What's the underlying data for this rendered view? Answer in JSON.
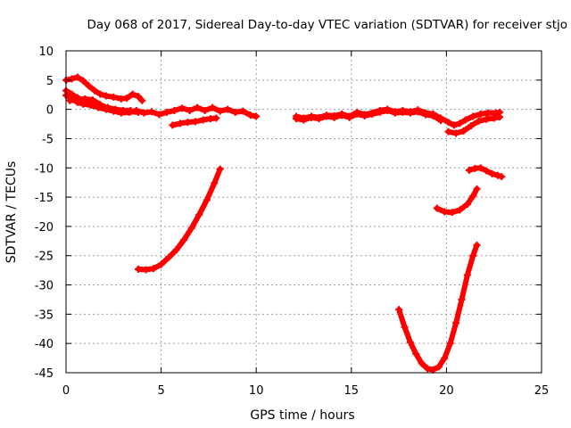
{
  "chart_data": {
    "type": "scatter",
    "title": "Day 068 of 2017, Sidereal Day-to-day VTEC variation (SDTVAR) for receiver stjo",
    "xlabel": "GPS time / hours",
    "ylabel": "SDTVAR / TECUs",
    "xlim": [
      0,
      25
    ],
    "ylim": [
      -45,
      10
    ],
    "xticks": [
      0,
      5,
      10,
      15,
      20,
      25
    ],
    "yticks": [
      10,
      5,
      0,
      -5,
      -10,
      -15,
      -20,
      -25,
      -30,
      -35,
      -40,
      -45
    ],
    "grid": true,
    "legend": "none",
    "color": "#ff0000",
    "series": [
      {
        "points": [
          [
            0.0,
            5.0
          ],
          [
            0.3,
            5.2
          ],
          [
            0.6,
            5.5
          ],
          [
            0.9,
            4.9
          ],
          [
            1.2,
            4.0
          ],
          [
            1.5,
            3.2
          ],
          [
            1.8,
            2.6
          ],
          [
            2.1,
            2.3
          ],
          [
            2.5,
            2.1
          ],
          [
            2.9,
            1.8
          ],
          [
            3.2,
            1.9
          ],
          [
            3.5,
            2.6
          ],
          [
            3.8,
            2.2
          ],
          [
            4.0,
            1.5
          ]
        ]
      },
      {
        "points": [
          [
            0.0,
            3.2
          ],
          [
            0.3,
            2.6
          ],
          [
            0.6,
            2.0
          ],
          [
            1.0,
            1.4
          ],
          [
            1.4,
            1.0
          ],
          [
            1.8,
            0.5
          ],
          [
            2.2,
            0.3
          ],
          [
            2.6,
            0.0
          ],
          [
            3.0,
            -0.2
          ],
          [
            3.4,
            -0.4
          ],
          [
            3.8,
            -0.5
          ]
        ]
      },
      {
        "points": [
          [
            0.0,
            2.4
          ],
          [
            0.3,
            1.8
          ],
          [
            0.6,
            1.2
          ],
          [
            0.9,
            0.9
          ],
          [
            1.3,
            0.7
          ],
          [
            1.7,
            0.3
          ],
          [
            2.1,
            0.0
          ],
          [
            2.5,
            -0.3
          ],
          [
            2.9,
            -0.6
          ],
          [
            3.3,
            -0.5
          ],
          [
            3.7,
            -0.2
          ],
          [
            4.1,
            -0.6
          ],
          [
            4.5,
            -0.4
          ],
          [
            4.9,
            -0.9
          ],
          [
            5.3,
            -0.5
          ],
          [
            5.7,
            -0.2
          ],
          [
            6.1,
            0.2
          ],
          [
            6.5,
            -0.2
          ],
          [
            6.9,
            0.3
          ],
          [
            7.3,
            -0.2
          ],
          [
            7.7,
            0.3
          ],
          [
            8.1,
            -0.3
          ],
          [
            8.5,
            0.0
          ],
          [
            8.9,
            -0.5
          ],
          [
            9.3,
            -0.3
          ],
          [
            9.7,
            -1.0
          ],
          [
            10.0,
            -1.2
          ]
        ]
      },
      {
        "points": [
          [
            0.2,
            1.5
          ],
          [
            0.6,
            1.6
          ],
          [
            1.0,
            1.8
          ],
          [
            1.4,
            1.6
          ],
          [
            1.8,
            0.8
          ],
          [
            2.2,
            0.2
          ],
          [
            2.6,
            -0.2
          ],
          [
            3.0,
            -0.2
          ],
          [
            3.4,
            -0.2
          ]
        ]
      },
      {
        "points": [
          [
            5.6,
            -2.7
          ],
          [
            6.0,
            -2.4
          ],
          [
            6.4,
            -2.2
          ],
          [
            6.8,
            -2.1
          ],
          [
            7.2,
            -1.8
          ],
          [
            7.6,
            -1.6
          ],
          [
            7.9,
            -1.5
          ]
        ]
      },
      {
        "points": [
          [
            3.8,
            -27.3
          ],
          [
            4.2,
            -27.4
          ],
          [
            4.6,
            -27.2
          ],
          [
            5.0,
            -26.5
          ],
          [
            5.4,
            -25.3
          ],
          [
            5.8,
            -24.0
          ],
          [
            6.2,
            -22.3
          ],
          [
            6.6,
            -20.3
          ],
          [
            7.0,
            -18.0
          ],
          [
            7.4,
            -15.5
          ],
          [
            7.8,
            -12.6
          ],
          [
            8.1,
            -10.2
          ]
        ]
      },
      {
        "points": [
          [
            12.1,
            -1.2
          ],
          [
            12.5,
            -1.5
          ],
          [
            12.9,
            -1.2
          ],
          [
            13.3,
            -1.4
          ],
          [
            13.7,
            -1.0
          ],
          [
            14.1,
            -1.1
          ],
          [
            14.5,
            -0.8
          ],
          [
            14.9,
            -1.2
          ],
          [
            15.3,
            -0.5
          ],
          [
            15.7,
            -0.9
          ],
          [
            16.1,
            -0.6
          ],
          [
            16.5,
            -0.2
          ],
          [
            16.9,
            0.0
          ],
          [
            17.3,
            -0.4
          ],
          [
            17.7,
            -0.2
          ],
          [
            18.1,
            -0.4
          ],
          [
            18.5,
            -0.1
          ],
          [
            18.9,
            -0.6
          ],
          [
            19.3,
            -0.8
          ],
          [
            19.7,
            -1.5
          ],
          [
            20.1,
            -2.2
          ],
          [
            20.4,
            -2.7
          ],
          [
            20.7,
            -2.4
          ],
          [
            21.0,
            -1.8
          ],
          [
            21.4,
            -1.2
          ],
          [
            21.8,
            -0.8
          ],
          [
            22.2,
            -0.6
          ],
          [
            22.6,
            -0.6
          ],
          [
            22.8,
            -0.5
          ]
        ]
      },
      {
        "points": [
          [
            12.1,
            -1.6
          ],
          [
            12.5,
            -1.8
          ],
          [
            12.9,
            -1.4
          ],
          [
            13.3,
            -1.6
          ],
          [
            13.7,
            -1.2
          ],
          [
            14.1,
            -1.4
          ],
          [
            14.5,
            -1.0
          ],
          [
            14.9,
            -1.4
          ],
          [
            15.3,
            -0.8
          ],
          [
            15.7,
            -1.1
          ],
          [
            16.1,
            -0.8
          ],
          [
            16.5,
            -0.5
          ],
          [
            16.9,
            -0.2
          ],
          [
            17.3,
            -0.6
          ],
          [
            17.7,
            -0.5
          ],
          [
            18.1,
            -0.6
          ],
          [
            18.5,
            -0.4
          ],
          [
            18.9,
            -0.9
          ],
          [
            19.3,
            -1.1
          ],
          [
            19.7,
            -1.9
          ]
        ]
      },
      {
        "points": [
          [
            20.1,
            -3.8
          ],
          [
            20.5,
            -4.1
          ],
          [
            20.9,
            -3.7
          ],
          [
            21.3,
            -2.8
          ],
          [
            21.7,
            -2.0
          ],
          [
            22.1,
            -1.7
          ],
          [
            22.5,
            -1.5
          ],
          [
            22.8,
            -1.3
          ]
        ]
      },
      {
        "points": [
          [
            19.5,
            -16.9
          ],
          [
            19.9,
            -17.5
          ],
          [
            20.3,
            -17.6
          ],
          [
            20.7,
            -17.2
          ],
          [
            21.1,
            -16.2
          ],
          [
            21.4,
            -14.8
          ],
          [
            21.6,
            -13.6
          ]
        ]
      },
      {
        "points": [
          [
            21.2,
            -10.4
          ],
          [
            21.5,
            -10.1
          ],
          [
            21.8,
            -10.0
          ],
          [
            22.1,
            -10.5
          ],
          [
            22.4,
            -11.0
          ],
          [
            22.7,
            -11.3
          ],
          [
            22.9,
            -11.5
          ]
        ]
      },
      {
        "points": [
          [
            17.5,
            -34.2
          ],
          [
            17.8,
            -37.2
          ],
          [
            18.1,
            -39.8
          ],
          [
            18.4,
            -41.8
          ],
          [
            18.7,
            -43.4
          ],
          [
            19.0,
            -44.3
          ],
          [
            19.3,
            -44.5
          ],
          [
            19.6,
            -44.0
          ],
          [
            19.9,
            -42.5
          ],
          [
            20.2,
            -40.0
          ],
          [
            20.5,
            -36.5
          ],
          [
            20.8,
            -32.5
          ],
          [
            21.1,
            -28.3
          ],
          [
            21.4,
            -25.0
          ],
          [
            21.6,
            -23.2
          ]
        ]
      }
    ]
  }
}
